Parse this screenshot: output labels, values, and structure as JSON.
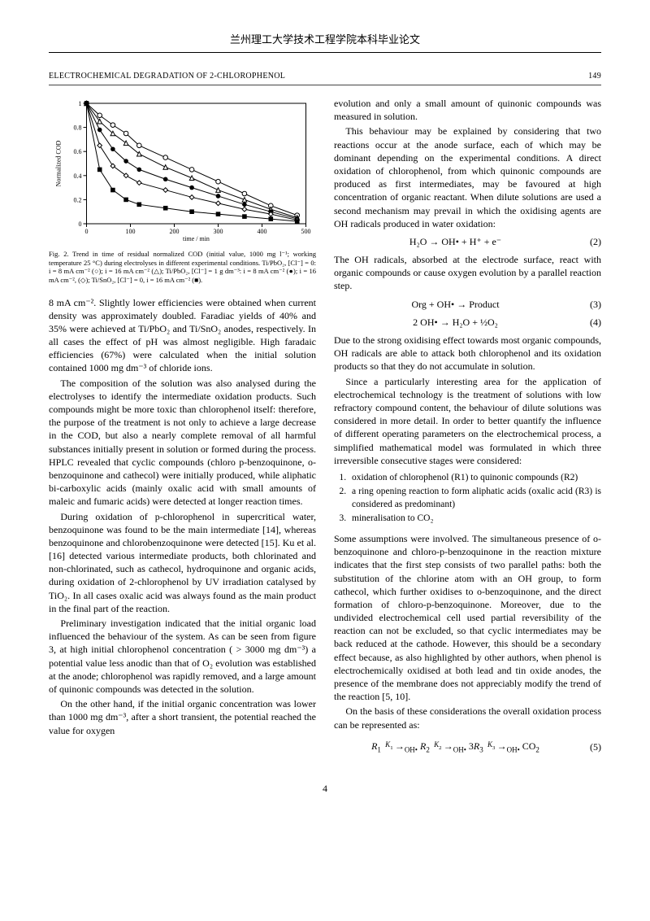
{
  "thesis_header": "兰州理工大学技术工程学院本科毕业论文",
  "paper_header": {
    "title": "ELECTROCHEMICAL DEGRADATION OF 2-CHLOROPHENOL",
    "page": "149"
  },
  "chart": {
    "type": "line",
    "xlabel": "time / min",
    "ylabel": "Normalized COD",
    "xlim": [
      0,
      500
    ],
    "ylim": [
      0,
      1
    ],
    "xticks": [
      0,
      100,
      200,
      300,
      400,
      500
    ],
    "yticks": [
      0,
      0.2,
      0.4,
      0.6,
      0.8,
      1
    ],
    "label_fontsize": 8,
    "axis_color": "#000000",
    "background_color": "#ffffff",
    "series": [
      {
        "marker": "circle-open",
        "color": "#000000",
        "x": [
          0,
          30,
          60,
          90,
          120,
          180,
          240,
          300,
          360,
          420,
          480
        ],
        "y": [
          1,
          0.9,
          0.82,
          0.75,
          0.65,
          0.55,
          0.45,
          0.35,
          0.25,
          0.15,
          0.07
        ]
      },
      {
        "marker": "triangle-open",
        "color": "#000000",
        "x": [
          0,
          30,
          60,
          90,
          120,
          180,
          240,
          300,
          360,
          420,
          480
        ],
        "y": [
          1,
          0.85,
          0.75,
          0.67,
          0.58,
          0.47,
          0.38,
          0.28,
          0.2,
          0.12,
          0.05
        ]
      },
      {
        "marker": "circle-filled",
        "color": "#000000",
        "x": [
          0,
          30,
          60,
          90,
          120,
          180,
          240,
          300,
          360,
          420,
          480
        ],
        "y": [
          1,
          0.78,
          0.62,
          0.52,
          0.45,
          0.37,
          0.3,
          0.23,
          0.16,
          0.1,
          0.04
        ]
      },
      {
        "marker": "diamond-open",
        "color": "#000000",
        "x": [
          0,
          30,
          60,
          90,
          120,
          180,
          240,
          300,
          360,
          420,
          480
        ],
        "y": [
          1,
          0.65,
          0.48,
          0.4,
          0.34,
          0.28,
          0.22,
          0.17,
          0.12,
          0.08,
          0.03
        ]
      },
      {
        "marker": "square-filled",
        "color": "#000000",
        "x": [
          0,
          30,
          60,
          90,
          120,
          180,
          240,
          300,
          360,
          420,
          480
        ],
        "y": [
          1,
          0.45,
          0.28,
          0.2,
          0.16,
          0.13,
          0.1,
          0.08,
          0.06,
          0.04,
          0.02
        ]
      }
    ]
  },
  "caption": "Fig. 2. Trend in time of residual normalized COD (initial value, 1000 mg l⁻¹; working temperature 25 °C) during electrolyses in different experimental conditions. Ti/PbO₂, [Cl⁻] = 0: i = 8 mA cm⁻² (○); i = 16 mA cm⁻² (△); Ti/PbO₂, [Cl⁻] = 1 g dm⁻³: i = 8 mA cm⁻² (●); i = 16 mA cm⁻², (◇); Ti/SnO₂, [Cl⁻] = 0, i = 16 mA cm⁻² (■).",
  "left": {
    "p1": "8 mA cm⁻². Slightly lower efficiencies were obtained when current density was approximately doubled. Faradiac yields of 40% and 35% were achieved at Ti/PbO₂ and Ti/SnO₂ anodes, respectively. In all cases the effect of pH was almost negligible. High faradaic efficiencies (67%) were calculated when the initial solution contained 1000 mg dm⁻³ of chloride ions.",
    "p2": "The composition of the solution was also analysed during the electrolyses to identify the intermediate oxidation products. Such compounds might be more toxic than chlorophenol itself: therefore, the purpose of the treatment is not only to achieve a large decrease in the COD, but also a nearly complete removal of all harmful substances initially present in solution or formed during the process. HPLC revealed that cyclic compounds (chloro p-benzoquinone, o-benzoquinone and cathecol) were initially produced, while aliphatic bi-carboxylic acids (mainly oxalic acid with small amounts of maleic and fumaric acids) were detected at longer reaction times.",
    "p3": "During oxidation of p-chlorophenol in supercritical water, benzoquinone was found to be the main intermediate [14], whereas benzoquinone and chlorobenzoquinone were detected [15]. Ku et al. [16] detected various intermediate products, both chlorinated and non-chlorinated, such as cathecol, hydroquinone and organic acids, during oxidation of 2-chlorophenol by UV irradiation catalysed by TiO₂. In all cases oxalic acid was always found as the main product in the final part of the reaction.",
    "p4": "Preliminary investigation indicated that the initial organic load influenced the behaviour of the system. As can be seen from figure 3, at high initial chlorophenol concentration ( > 3000 mg dm⁻³) a potential value less anodic than that of O₂ evolution was established at the anode; chlorophenol was rapidly removed, and a large amount of quinonic compounds was detected in the solution.",
    "p5": "On the other hand, if the initial organic concentration was lower than 1000 mg dm⁻³, after a short transient, the potential reached the value for oxygen"
  },
  "right": {
    "p1": "evolution and only a small amount of quinonic compounds was measured in solution.",
    "p2": "This behaviour may be explained by considering that two reactions occur at the anode surface, each of which may be dominant depending on the experimental conditions. A direct oxidation of chlorophenol, from which quinonic compounds are produced as first intermediates, may be favoured at high concentration of organic reactant. When dilute solutions are used a second mechanism may prevail in which the oxidising agents are OH radicals produced in water oxidation:",
    "eq2": "H₂O → OH• + H⁺ + e⁻",
    "eq2n": "(2)",
    "p3": "The OH radicals, absorbed at the electrode surface, react with organic compounds or cause oxygen evolution by a parallel reaction step.",
    "eq3": "Org + OH• → Product",
    "eq3n": "(3)",
    "eq4": "2 OH• → H₂O + ½O₂",
    "eq4n": "(4)",
    "p4": "Due to the strong oxidising effect towards most organic compounds, OH radicals are able to attack both chlorophenol and its oxidation products so that they do not accumulate in solution.",
    "p5": "Since a particularly interesting area for the application of electrochemical technology is the treatment of solutions with low refractory compound content, the behaviour of dilute solutions was considered in more detail. In order to better quantify the influence of different operating parameters on the electrochemical process, a simplified mathematical model was formulated in which three irreversible consecutive stages were considered:",
    "stages": [
      "oxidation of chlorophenol (R1) to quinonic compounds (R2)",
      "a ring opening reaction to form aliphatic acids (oxalic acid (R3) is considered as predominant)",
      "mineralisation to CO₂"
    ],
    "p6": "Some assumptions were involved. The simultaneous presence of o-benzoquinone and chloro-p-benzoquinone in the reaction mixture indicates that the first step consists of two parallel paths: both the substitution of the chlorine atom with an OH group, to form cathecol, which further oxidises to o-benzoquinone, and the direct formation of chloro-p-benzoquinone. Moreover, due to the undivided electrochemical cell used partial reversibility of the reaction can not be excluded, so that cyclic intermediates may be back reduced at the cathode. However, this should be a secondary effect because, as also highlighted by other authors, when phenol is electrochemically oxidised at both lead and tin oxide anodes, the presence of the membrane does not appreciably modify the trend of the reaction [5, 10].",
    "p7": "On the basis of these considerations the overall oxidation process can be represented as:",
    "eq5_html": "<i>R</i><sub>1</sub> <span style='position:relative;top:-3px;font-size:9px'>&nbsp;<i>K</i><sub>1</sub>&nbsp;</span>→<sub style='font-size:9px'>OH•</sub> <i>R</i><sub>2</sub> <span style='position:relative;top:-3px;font-size:9px'>&nbsp;<i>K</i><sub>2</sub>&nbsp;</span>→<sub style='font-size:9px'>OH•</sub> 3<i>R</i><sub>3</sub> <span style='position:relative;top:-3px;font-size:9px'>&nbsp;<i>K</i><sub>3</sub>&nbsp;</span>→<sub style='font-size:9px'>OH•</sub> CO<sub>2</sub>",
    "eq5n": "(5)"
  },
  "pagenum": "4"
}
